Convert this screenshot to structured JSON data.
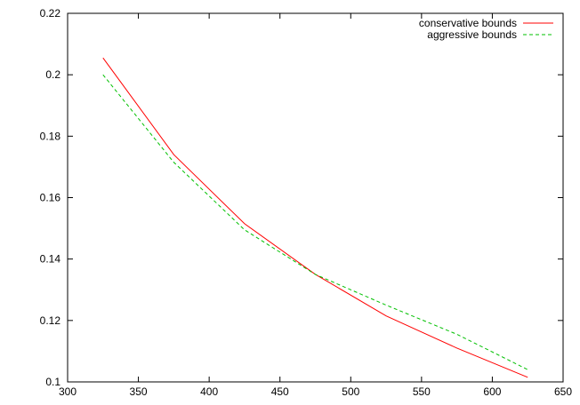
{
  "chart_data": {
    "type": "line",
    "title": "",
    "xlabel": "",
    "ylabel": "",
    "xlim": [
      300,
      650
    ],
    "ylim": [
      0.1,
      0.22
    ],
    "x_ticks": [
      300,
      350,
      400,
      450,
      500,
      550,
      600,
      650
    ],
    "y_ticks": [
      0.1,
      0.12,
      0.14,
      0.16,
      0.18,
      0.2,
      0.22
    ],
    "x_tick_labels": [
      "300",
      "350",
      "400",
      "450",
      "500",
      "550",
      "600",
      "650"
    ],
    "y_tick_labels": [
      "0.1",
      "0.12",
      "0.14",
      "0.16",
      "0.18",
      "0.2",
      "0.22"
    ],
    "grid": false,
    "legend_position": "top-right",
    "series": [
      {
        "name": "conservative bounds",
        "color": "#ff0000",
        "dash": "solid",
        "x": [
          325,
          375,
          425,
          475,
          525,
          575,
          625
        ],
        "y": [
          0.2055,
          0.174,
          0.1515,
          0.135,
          0.1215,
          0.111,
          0.1015
        ]
      },
      {
        "name": "aggressive bounds",
        "color": "#00c000",
        "dash": "dashed",
        "x": [
          325,
          375,
          425,
          475,
          525,
          575,
          625
        ],
        "y": [
          0.2,
          0.1715,
          0.1495,
          0.135,
          0.125,
          0.1155,
          0.104
        ]
      }
    ]
  }
}
